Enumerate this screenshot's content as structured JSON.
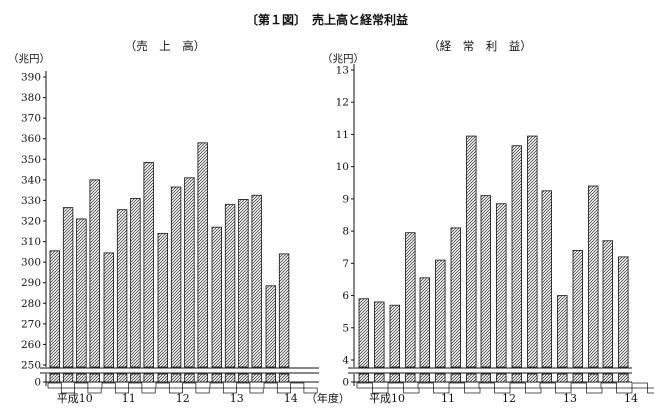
{
  "figure_title": "〔第１図〕　売上高と経常利益",
  "chart_data": [
    {
      "type": "bar",
      "title": "（売　上　高）",
      "ylabel": "（兆円）",
      "y_ticks": [
        "390",
        "380",
        "370",
        "360",
        "350",
        "340",
        "330",
        "320",
        "310",
        "300",
        "290",
        "280",
        "270",
        "260",
        "250",
        "0"
      ],
      "ylim": [
        245,
        395
      ],
      "axis_break": true,
      "group_labels": [
        "平成10",
        "11",
        "12",
        "13",
        "14",
        "（年度）"
      ],
      "values": [
        305.5,
        326.5,
        321,
        340,
        304.5,
        325.5,
        331,
        348.5,
        314,
        336.5,
        341,
        358,
        317,
        328,
        330.5,
        332.5,
        288.5,
        304
      ]
    },
    {
      "type": "bar",
      "title": "（経　常　利　益）",
      "ylabel": "（兆円）",
      "y_ticks": [
        "13",
        "12",
        "11",
        "10",
        "9",
        "8",
        "7",
        "6",
        "5",
        "4",
        "0"
      ],
      "ylim": [
        3.6,
        13.1
      ],
      "axis_break": true,
      "group_labels": [
        "平成10",
        "11",
        "12",
        "13",
        "14",
        "（年度）"
      ],
      "values": [
        5.9,
        5.8,
        5.7,
        7.95,
        6.55,
        7.1,
        8.1,
        10.95,
        9.1,
        8.85,
        10.65,
        10.95,
        9.25,
        6.0,
        7.4,
        9.4,
        7.7,
        7.2
      ]
    }
  ]
}
